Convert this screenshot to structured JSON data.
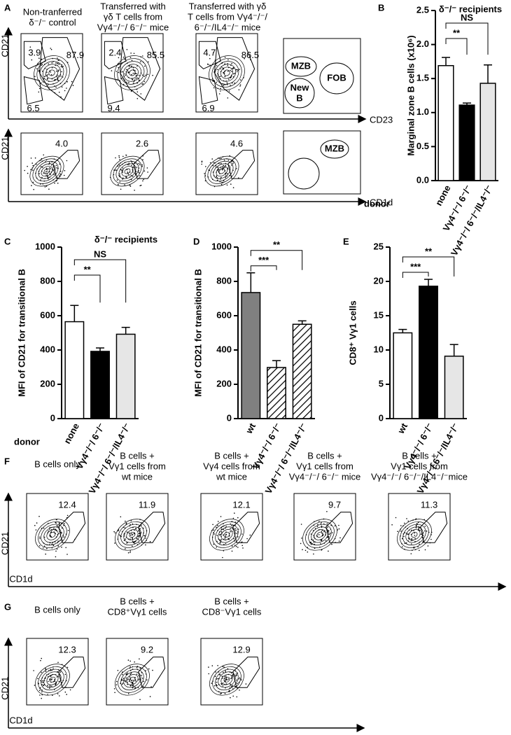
{
  "figure_a": {
    "label": "A",
    "columns": [
      {
        "header": [
          "Non-tranferred",
          "δ⁻/⁻ control"
        ],
        "gates_top": [
          "3.9",
          "87.9",
          "6.5"
        ],
        "gates_bottom": [
          "4.0"
        ]
      },
      {
        "header": [
          "Transferred with",
          "γδ T cells from",
          "Vγ4⁻/⁻/ 6⁻/⁻ mice"
        ],
        "gates_top": [
          "2.4",
          "85.5",
          "9.4"
        ],
        "gates_bottom": [
          "2.6"
        ]
      },
      {
        "header": [
          "Transferred with γδ",
          "T cells from Vγ4⁻/⁻/",
          "6⁻/⁻/IL4⁻/⁻ mice"
        ],
        "gates_top": [
          "4.7",
          "86.5",
          "6.9"
        ],
        "gates_bottom": [
          "4.6"
        ]
      }
    ],
    "axis_labels": {
      "y_top": "CD21",
      "x_top": "CD23",
      "y_bottom": "CD21",
      "x_bottom": "CD1d"
    },
    "schematic_top": [
      "MZB",
      "FOB",
      "New",
      "B"
    ],
    "schematic_bottom": [
      "MZB"
    ]
  },
  "chart_data": [
    {
      "type": "bar",
      "label": "B",
      "title": "δ⁻/⁻ recipients",
      "ylabel": "Marginal zone B cells (x10⁶)",
      "x_label": "donor",
      "categories": [
        "none",
        "Vγ4⁻/⁻/ 6⁻/⁻",
        "Vγ4⁻/⁻/ 6⁻/⁻/IL4⁻/⁻"
      ],
      "values": [
        1.69,
        1.11,
        1.43
      ],
      "errors": [
        0.12,
        0.03,
        0.27
      ],
      "colors": [
        "#ffffff",
        "#000000",
        "#e6e6e6"
      ],
      "hatch": [
        false,
        false,
        false
      ],
      "ylim": [
        0,
        2.5
      ],
      "yticks": [
        {
          "value": 0,
          "label": "0.0"
        },
        0.5,
        {
          "value": 1,
          "label": "1.0"
        },
        1.5,
        {
          "value": 2,
          "label": "2.0"
        },
        2.5
      ],
      "annotations": [
        {
          "text": "**",
          "between": [
            0,
            1
          ]
        },
        {
          "text": "NS",
          "between": [
            0,
            2
          ]
        }
      ]
    },
    {
      "type": "bar",
      "label": "C",
      "title": "δ⁻/⁻ recipients",
      "ylabel": "MFI of CD21 for transitional B",
      "x_label": "donor",
      "categories": [
        "none",
        "Vγ4⁻/⁻/ 6⁻/⁻",
        "Vγ4⁻/⁻/ 6⁻/⁻/IL4⁻/⁻"
      ],
      "values": [
        565,
        392,
        492
      ],
      "errors": [
        95,
        20,
        40
      ],
      "colors": [
        "#ffffff",
        "#000000",
        "#e6e6e6"
      ],
      "hatch": [
        false,
        false,
        false
      ],
      "ylim": [
        0,
        1000
      ],
      "yticks": [
        0,
        200,
        400,
        600,
        800,
        1000
      ],
      "annotations": [
        {
          "text": "**",
          "between": [
            0,
            1
          ]
        },
        {
          "text": "NS",
          "between": [
            0,
            2
          ]
        }
      ]
    },
    {
      "type": "bar",
      "label": "D",
      "ylabel": "MFI of CD21 for transitional B",
      "categories": [
        "wt",
        "Vγ4⁻/⁻/ 6⁻/⁻",
        "Vγ4⁻/⁻/ 6⁻/⁻/IL4⁻/⁻"
      ],
      "values": [
        735,
        298,
        550
      ],
      "errors": [
        115,
        40,
        20
      ],
      "colors": [
        "#808080",
        "#ffffff",
        "#ffffff"
      ],
      "hatch": [
        false,
        true,
        true
      ],
      "ylim": [
        0,
        1000
      ],
      "yticks": [
        0,
        200,
        400,
        600,
        800,
        1000
      ],
      "annotations": [
        {
          "text": "***",
          "between": [
            0,
            1
          ]
        },
        {
          "text": "**",
          "between": [
            0,
            2
          ]
        }
      ]
    },
    {
      "type": "bar",
      "label": "E",
      "ylabel": "CD8⁺ Vγ1 cells",
      "categories": [
        "wt",
        "Vγ4⁻/⁻/ 6⁻/⁻",
        "Vγ4⁻/⁻/ 6⁻/⁻/IL4⁻/⁻"
      ],
      "values": [
        12.5,
        19.3,
        9.1
      ],
      "errors": [
        0.5,
        1.0,
        1.7
      ],
      "colors": [
        "#ffffff",
        "#000000",
        "#e6e6e6"
      ],
      "hatch": [
        false,
        false,
        false
      ],
      "ylim": [
        0,
        25
      ],
      "yticks": [
        0,
        5,
        10,
        15,
        20,
        25
      ],
      "annotations": [
        {
          "text": "***",
          "between": [
            0,
            1
          ]
        },
        {
          "text": "**",
          "between": [
            0,
            2
          ]
        }
      ]
    }
  ],
  "figure_f": {
    "label": "F",
    "axis_labels": {
      "y": "CD21",
      "x": "CD1d"
    },
    "columns": [
      {
        "header": [
          "B cells only"
        ],
        "gate": "12.4"
      },
      {
        "header": [
          "B cells +",
          "Vγ1 cells from",
          "wt mice"
        ],
        "gate": "11.9"
      },
      {
        "header": [
          "B cells +",
          "Vγ4 cells from",
          "wt mice"
        ],
        "gate": "12.1"
      },
      {
        "header": [
          "B cells +",
          "Vγ1 cells from",
          "Vγ4⁻/⁻/ 6⁻/⁻ mice"
        ],
        "gate": "9.7"
      },
      {
        "header": [
          "B cells +",
          "Vγ1 cells from",
          "Vγ4⁻/⁻/ 6⁻/⁻/IL4⁻/⁻mice"
        ],
        "gate": "11.3"
      }
    ]
  },
  "figure_g": {
    "label": "G",
    "axis_labels": {
      "y": "CD21",
      "x": "CD1d"
    },
    "columns": [
      {
        "header": [
          "B cells only"
        ],
        "gate": "12.3"
      },
      {
        "header": [
          "B cells +",
          "CD8⁺Vγ1 cells"
        ],
        "gate": "9.2"
      },
      {
        "header": [
          "B cells +",
          "CD8⁻Vγ1 cells"
        ],
        "gate": "12.9"
      }
    ]
  }
}
